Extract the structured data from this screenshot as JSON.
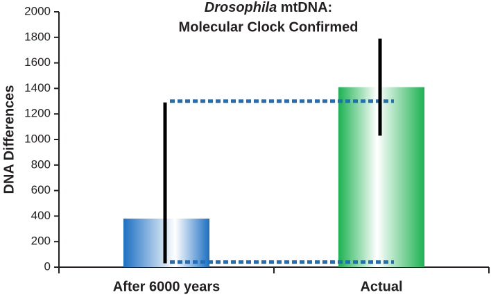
{
  "chart_data": {
    "type": "bar",
    "title": [
      "Drosophila",
      "mtDNA:",
      "Molecular Clock Confirmed"
    ],
    "y_label": "DNA Differences",
    "categories": [
      "After 6000 years",
      "Actual"
    ],
    "values": [
      380,
      1410
    ],
    "colors": [
      "#1b6fc2",
      "#1cb251"
    ],
    "error_low": [
      30,
      1030
    ],
    "error_high": [
      1290,
      1790
    ],
    "reference_lines": [
      1300,
      40
    ],
    "reference_color": "#1f6fbf",
    "ylim": [
      0,
      2000
    ],
    "yticks": [
      0,
      200,
      400,
      600,
      800,
      1000,
      1200,
      1400,
      1600,
      1800,
      2000
    ],
    "grid": false
  }
}
